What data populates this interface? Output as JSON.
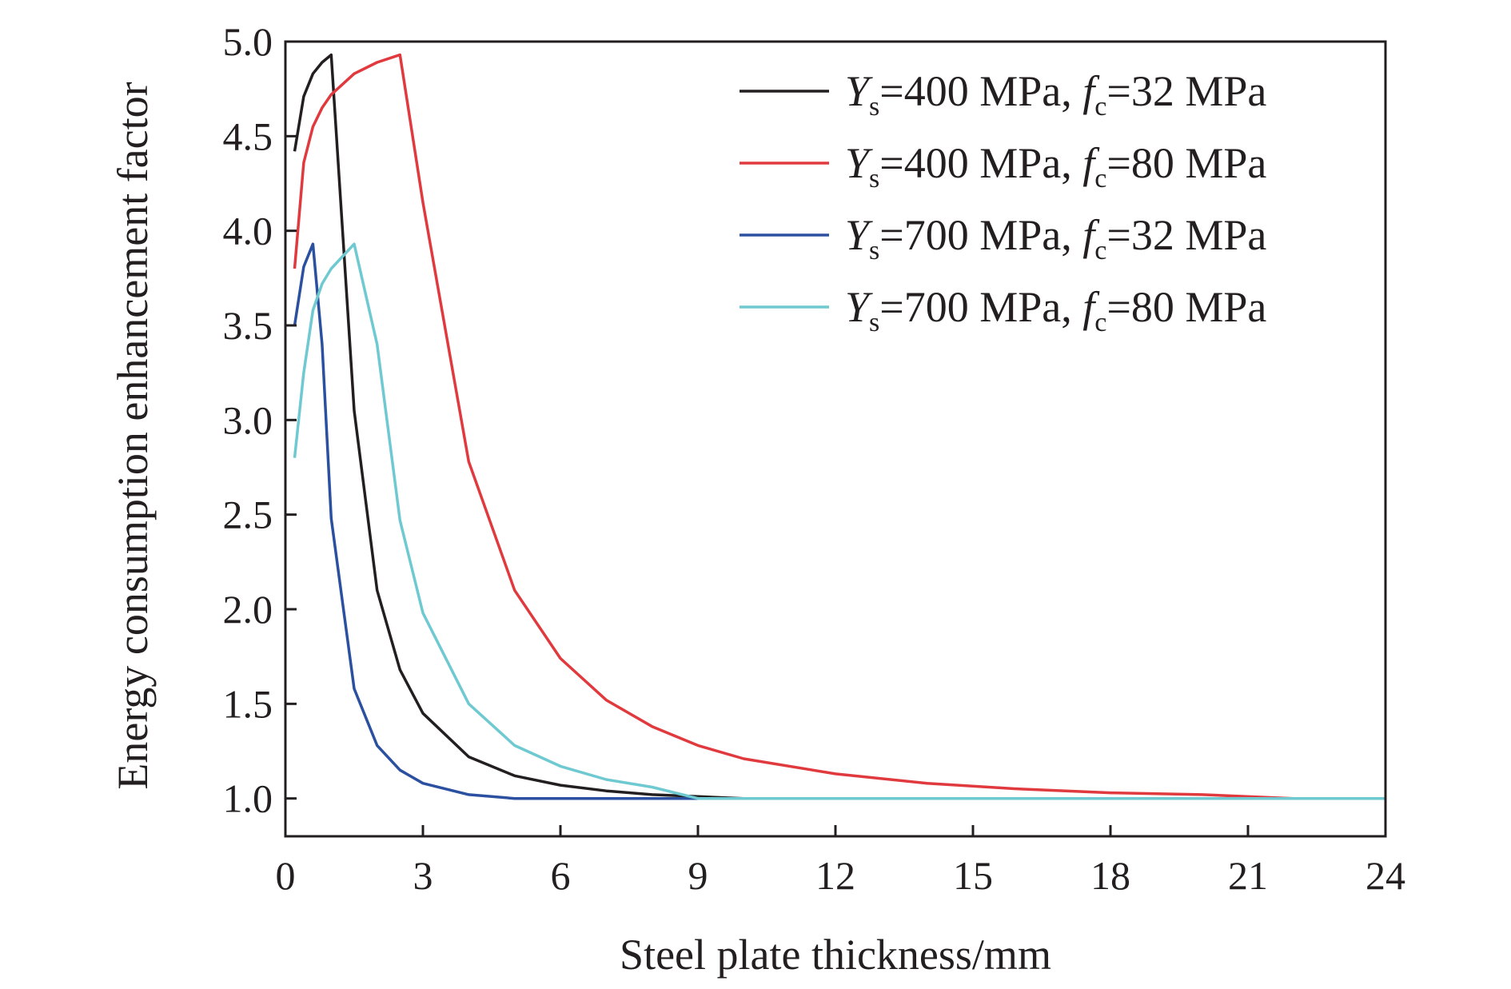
{
  "chart_data": {
    "type": "line",
    "title": "",
    "xlabel": "Steel plate thickness/mm",
    "ylabel": "Energy consumption enhancement factor",
    "xlim": [
      0,
      24
    ],
    "ylim": [
      0.8,
      5.0
    ],
    "xticks": [
      0,
      3,
      6,
      9,
      12,
      15,
      18,
      21,
      24
    ],
    "xtick_labels": [
      "0",
      "3",
      "6",
      "9",
      "12",
      "15",
      "18",
      "21",
      "24"
    ],
    "yticks": [
      1.0,
      1.5,
      2.0,
      2.5,
      3.0,
      3.5,
      4.0,
      4.5,
      5.0
    ],
    "ytick_labels": [
      "1.0",
      "1.5",
      "2.0",
      "2.5",
      "3.0",
      "3.5",
      "4.0",
      "4.5",
      "5.0"
    ],
    "grid": false,
    "legend_position": "top-right",
    "series": [
      {
        "name": "Ys=400 MPa, fc=32 MPa",
        "label_parts": {
          "y": "Y",
          "ysub": "s",
          "mid": "=400 MPa, ",
          "f": "f",
          "fsub": "c",
          "end": "=32 MPa"
        },
        "color": "#231f20",
        "x": [
          0.2,
          0.4,
          0.6,
          0.8,
          1.0,
          1.5,
          2.0,
          2.5,
          3.0,
          4.0,
          5.0,
          6.0,
          7.0,
          8.0,
          9.0,
          10.0,
          12.0,
          24.0
        ],
        "y": [
          4.42,
          4.71,
          4.83,
          4.89,
          4.93,
          3.05,
          2.1,
          1.68,
          1.45,
          1.22,
          1.12,
          1.07,
          1.04,
          1.02,
          1.01,
          1.0,
          1.0,
          1.0
        ]
      },
      {
        "name": "Ys=400 MPa, fc=80 MPa",
        "label_parts": {
          "y": "Y",
          "ysub": "s",
          "mid": "=400 MPa, ",
          "f": "f",
          "fsub": "c",
          "end": "=80 MPa"
        },
        "color": "#e03a3e",
        "x": [
          0.2,
          0.4,
          0.6,
          0.8,
          1.0,
          1.5,
          2.0,
          2.5,
          3.0,
          4.0,
          5.0,
          6.0,
          7.0,
          8.0,
          9.0,
          10.0,
          12.0,
          14.0,
          16.0,
          18.0,
          20.0,
          22.0,
          24.0
        ],
        "y": [
          3.8,
          4.36,
          4.55,
          4.65,
          4.72,
          4.83,
          4.89,
          4.93,
          4.15,
          2.78,
          2.1,
          1.74,
          1.52,
          1.38,
          1.28,
          1.21,
          1.13,
          1.08,
          1.05,
          1.03,
          1.02,
          1.0,
          1.0
        ]
      },
      {
        "name": "Ys=700 MPa, fc=32 MPa",
        "label_parts": {
          "y": "Y",
          "ysub": "s",
          "mid": "=700 MPa, ",
          "f": "f",
          "fsub": "c",
          "end": "=32 MPa"
        },
        "color": "#2b50a0",
        "x": [
          0.2,
          0.4,
          0.6,
          0.8,
          1.0,
          1.5,
          2.0,
          2.5,
          3.0,
          4.0,
          5.0,
          6.0,
          8.0,
          24.0
        ],
        "y": [
          3.5,
          3.81,
          3.93,
          3.4,
          2.48,
          1.58,
          1.28,
          1.15,
          1.08,
          1.02,
          1.0,
          1.0,
          1.0,
          1.0
        ]
      },
      {
        "name": "Ys=700 MPa, fc=80 MPa",
        "label_parts": {
          "y": "Y",
          "ysub": "s",
          "mid": "=700 MPa, ",
          "f": "f",
          "fsub": "c",
          "end": "=80 MPa"
        },
        "color": "#6ec9d1",
        "x": [
          0.2,
          0.4,
          0.6,
          0.8,
          1.0,
          1.5,
          2.0,
          2.5,
          3.0,
          4.0,
          5.0,
          6.0,
          7.0,
          8.0,
          9.0,
          10.0,
          24.0
        ],
        "y": [
          2.8,
          3.25,
          3.58,
          3.72,
          3.8,
          3.93,
          3.4,
          2.47,
          1.98,
          1.5,
          1.28,
          1.17,
          1.1,
          1.06,
          1.0,
          1.0,
          1.0
        ]
      }
    ]
  }
}
